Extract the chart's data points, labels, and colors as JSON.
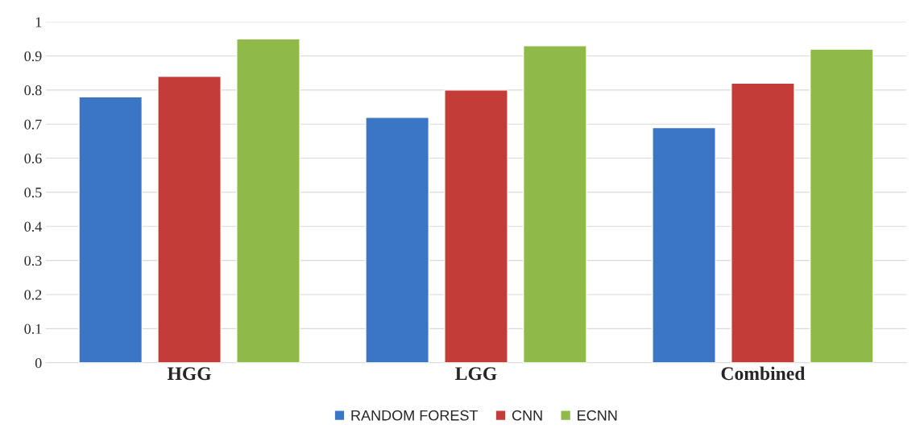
{
  "chart_data": {
    "type": "bar",
    "categories": [
      "HGG",
      "LGG",
      "Combined"
    ],
    "series": [
      {
        "name": "RANDOM FOREST",
        "color": "#3a76c4",
        "values": [
          0.78,
          0.72,
          0.69
        ]
      },
      {
        "name": "CNN",
        "color": "#c43c38",
        "values": [
          0.84,
          0.8,
          0.82
        ]
      },
      {
        "name": "ECNN",
        "color": "#8fba48",
        "values": [
          0.95,
          0.93,
          0.92
        ]
      }
    ],
    "ylim": [
      0,
      1
    ],
    "yticks": [
      0,
      0.1,
      0.2,
      0.3,
      0.4,
      0.5,
      0.6,
      0.7,
      0.8,
      0.9,
      1
    ],
    "grid": "y",
    "legend": "bottom"
  }
}
